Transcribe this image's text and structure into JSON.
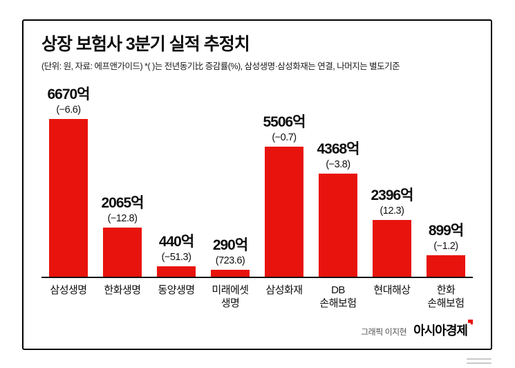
{
  "header": {
    "title": "상장 보험사 3분기 실적 추정치",
    "note": "(단위: 원, 자료: 에프앤가이드)  *(  )는 전년동기比 증감률(%), 삼성생명·삼성화재는 연결, 나머지는 별도기준"
  },
  "footer": {
    "credit": "그래픽 이지현",
    "brand": "아시아경제"
  },
  "chart_data": {
    "type": "bar",
    "title": "상장 보험사 3분기 실적 추정치",
    "categories": [
      "삼성생명",
      "한화생명",
      "동양생명",
      "미래에셋\n생명",
      "삼성화재",
      "DB\n손해보험",
      "현대해상",
      "한화\n손해보험"
    ],
    "values": [
      6670,
      2065,
      440,
      290,
      5506,
      4368,
      2396,
      899
    ],
    "value_labels": [
      "6670억",
      "2065억",
      "440억",
      "290억",
      "5506억",
      "4368억",
      "2396억",
      "899억"
    ],
    "pct_labels": [
      "(−6.6)",
      "(−12.8)",
      "(−51.3)",
      "(723.6)",
      "(−0.7)",
      "(−3.8)",
      "(12.3)",
      "(−1.2)"
    ],
    "unit": "억 원",
    "bar_color": "#e8130d",
    "ylim": [
      0,
      6700
    ],
    "grid": false,
    "legend": false
  }
}
